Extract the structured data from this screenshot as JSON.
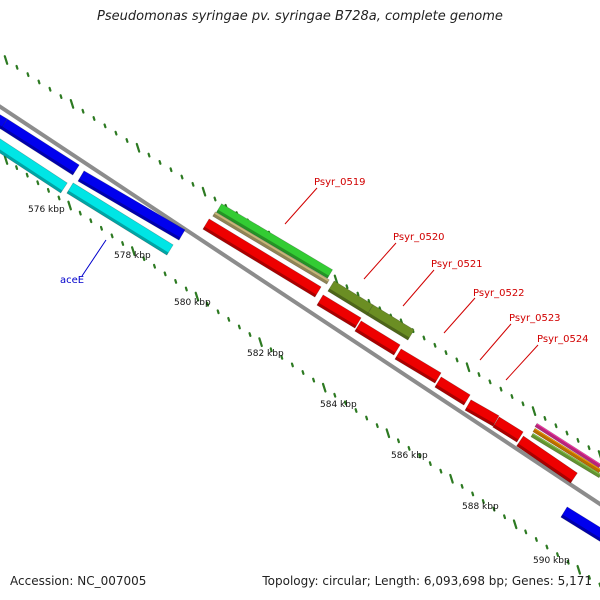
{
  "title": "Pseudomonas syringae pv. syringae B728a, complete genome",
  "footer": {
    "accession": "Accession: NC_007005",
    "summary": "Topology: circular; Length: 6,093,698 bp; Genes: 5,171"
  },
  "colors": {
    "backbone": "#8c8c8c",
    "tick": "#2d7a22",
    "gene_label": "#d10000",
    "named_gene_label": "#0000cc",
    "forward_cds": "#0000ee",
    "forward_cds_alt": "#00e5e5",
    "reverse_cds": "#ee0000",
    "gene_green": "#33cc33",
    "gene_tan": "#c8b878",
    "gene_olive": "#6b8e23",
    "gene_pink": "#ff33aa",
    "gene_orange": "#ff9900",
    "gene_lime": "#88cc44"
  },
  "ticks": [
    {
      "label": "576 kbp",
      "kbp": 576
    },
    {
      "label": "578 kbp",
      "kbp": 578
    },
    {
      "label": "580 kbp",
      "kbp": 580
    },
    {
      "label": "582 kbp",
      "kbp": 582
    },
    {
      "label": "584 kbp",
      "kbp": 584
    },
    {
      "label": "586 kbp",
      "kbp": 586
    },
    {
      "label": "588 kbp",
      "kbp": 588
    },
    {
      "label": "590 kbp",
      "kbp": 590
    }
  ],
  "gene_labels": [
    {
      "name": "Psyr_0519",
      "kind": "locus"
    },
    {
      "name": "Psyr_0520",
      "kind": "locus"
    },
    {
      "name": "Psyr_0521",
      "kind": "locus"
    },
    {
      "name": "Psyr_0522",
      "kind": "locus"
    },
    {
      "name": "Psyr_0523",
      "kind": "locus"
    },
    {
      "name": "Psyr_0524",
      "kind": "locus"
    },
    {
      "name": "aceE",
      "kind": "gene"
    }
  ]
}
